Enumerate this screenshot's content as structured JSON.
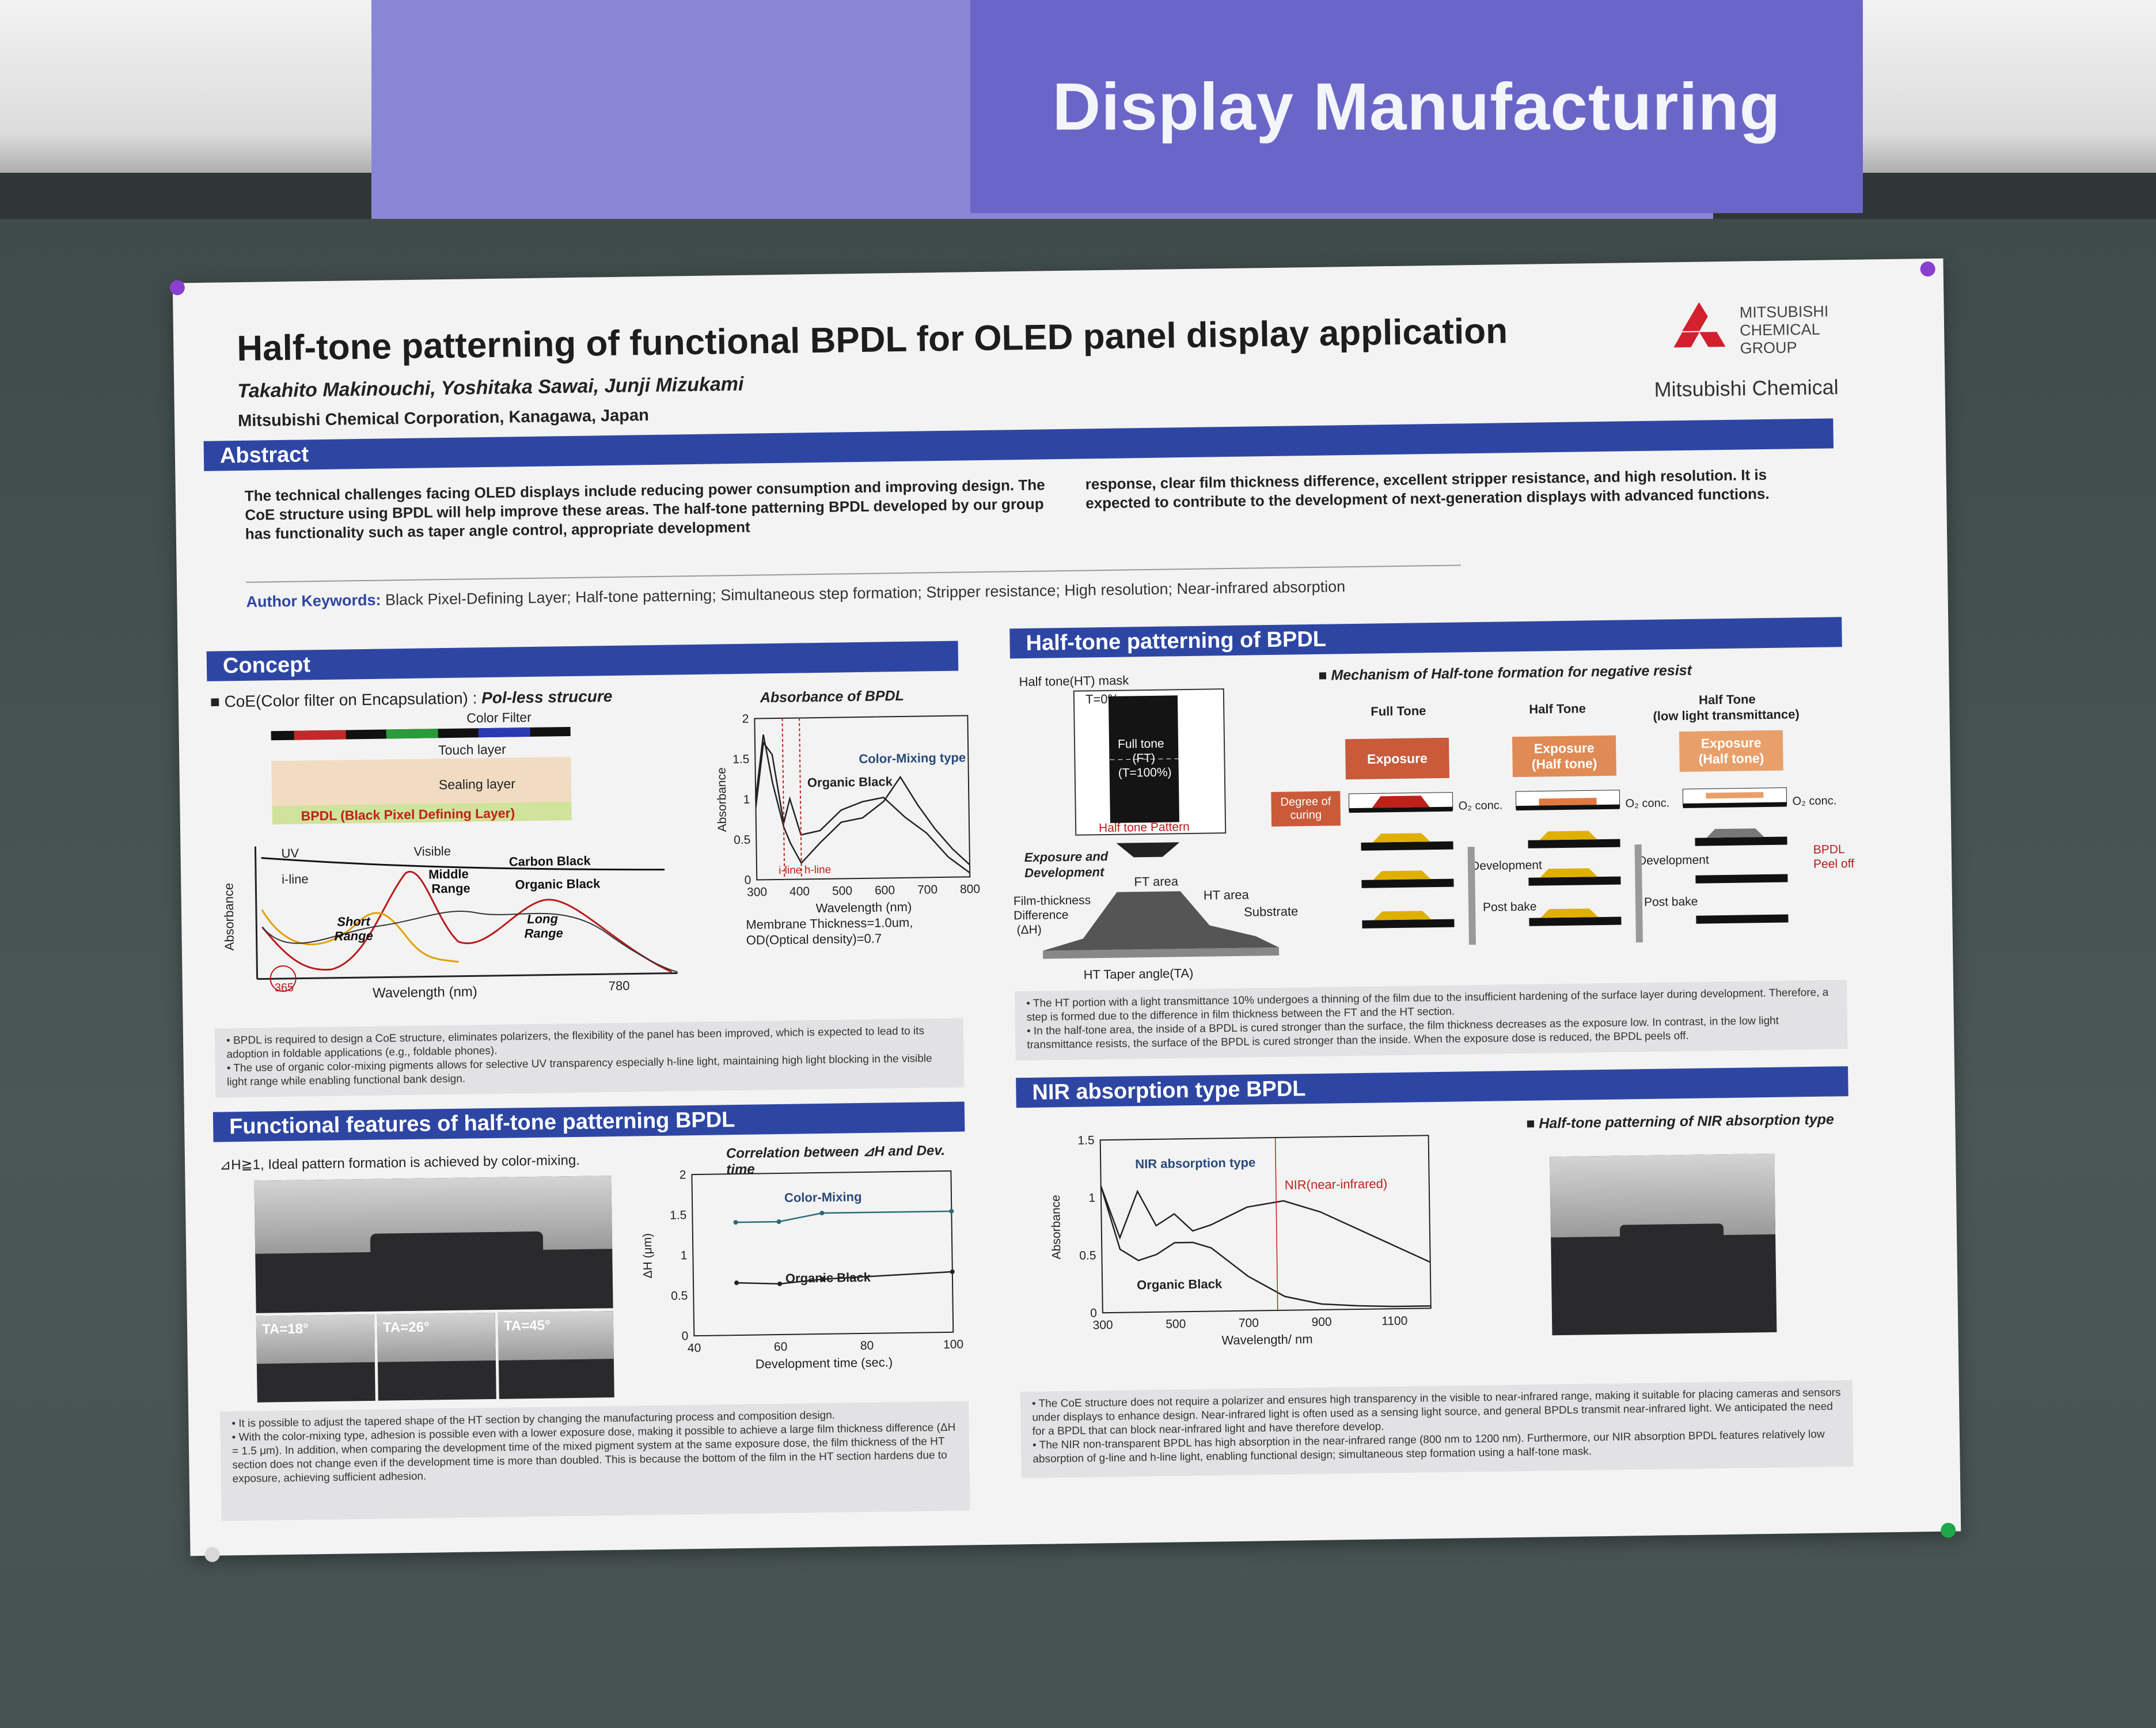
{
  "sign": {
    "title": "Display Manufacturing"
  },
  "poster": {
    "title": "Half-tone patterning of functional BPDL for OLED panel display application",
    "authors": "Takahito Makinouchi, Yoshitaka Sawai, Junji Mizukami",
    "affiliation": "Mitsubishi Chemical Corporation, Kanagawa, Japan",
    "logo_group": [
      "MITSUBISHI",
      "CHEMICAL",
      "GROUP"
    ],
    "logo_name": "Mitsubishi Chemical"
  },
  "abstract": {
    "heading": "Abstract",
    "left": "The technical challenges facing OLED displays include reducing power consumption and improving design. The CoE structure using BPDL will help improve these areas. The half-tone patterning BPDL developed by our group has functionality such as taper angle control, appropriate development",
    "right": "response, clear film thickness difference, excellent stripper resistance, and high resolution. It is expected to contribute to the development of next-generation displays with advanced functions.",
    "keywords_label": "Author Keywords:",
    "keywords": "Black Pixel-Defining Layer; Half-tone patterning; Simultaneous step formation; Stripper resistance; High resolution; Near-infrared absorption"
  },
  "concept": {
    "heading": "Concept",
    "subtitle_prefix": "■ CoE(Color filter on Encapsulation) : ",
    "subtitle_ital": "Pol-less strucure",
    "layers": [
      "Color Filter",
      "Touch layer",
      "Sealing layer",
      "BPDL (Black Pixel Defining Layer)"
    ],
    "spectrum_labels": {
      "uv": "UV",
      "visible": "Visible",
      "iline": "i-line",
      "carbon": "Carbon Black",
      "middle": "Middle Range",
      "organic": "Organic Black",
      "short": "Short Range",
      "long": "Long Range",
      "ylabel": "Absorbance",
      "xlabel": "Wavelength (nm)",
      "x365": "365",
      "x780": "780"
    },
    "notes": [
      "BPDL is required to design a CoE structure, eliminates polarizers, the flexibility of the panel has been improved, which is expected to lead to its adoption in foldable applications (e.g., foldable phones).",
      "The use of organic color-mixing pigments allows for selective UV transparency especially h-line light, maintaining high light blocking in the visible light range while enabling functional bank design."
    ]
  },
  "absorbance_chart": {
    "title": "Absorbance of BPDL",
    "ylabel": "Absorbance",
    "xlabel": "Wavelength (nm)",
    "xticks": [
      "300",
      "400",
      "500",
      "600",
      "700",
      "800"
    ],
    "yticks": [
      "0",
      "0.5",
      "1",
      "1.5",
      "2"
    ],
    "labels": {
      "organic": "Organic Black",
      "mixing": "Color-Mixing type",
      "iline": "i-line",
      "hline": "h-line"
    },
    "footnote1": "Membrane Thickness=1.0um,",
    "footnote2": "OD(Optical density)=0.7"
  },
  "halftone": {
    "heading": "Half-tone patterning of BPDL",
    "mask_title": "Half tone(HT) mask",
    "t0": "T=0%",
    "full_tone": [
      "Full tone",
      "(FT)",
      "(T=100%)"
    ],
    "pattern": "Half tone Pattern",
    "exposure_dev": [
      "Exposure and",
      "Development"
    ],
    "ft_area": "FT area",
    "ht_area": "HT area",
    "film_diff": [
      "Film-thickness",
      "Difference",
      "(ΔH)"
    ],
    "substrate": "Substrate",
    "taper": "HT Taper angle(TA)",
    "mech_title": "■ Mechanism of Half-tone formation for negative resist",
    "columns": [
      "Full Tone",
      "Half Tone",
      "Half Tone",
      "(low light transmittance)"
    ],
    "exposure": [
      "Exposure",
      "Exposure",
      "(Half tone)",
      "Exposure",
      "(Half tone)"
    ],
    "degree": [
      "Degree of",
      "curing"
    ],
    "o2": "O₂ conc.",
    "development": "Development",
    "postbake": "Post bake",
    "peel": [
      "BPDL",
      "Peel off"
    ],
    "notes": [
      "The HT portion with a light transmittance 10% undergoes a thinning of the film due to the insufficient hardening of the surface layer during development. Therefore, a step is formed due to the difference in film thickness between the FT and the HT section.",
      "In the half-tone area, the inside of a BPDL is cured stronger than the surface, the film thickness decreases as the exposure low. In contrast, in the low light transmittance resists, the surface of the BPDL is cured stronger than the inside.  When the exposure dose is reduced, the BPDL peels off."
    ]
  },
  "functional": {
    "heading": "Functional features of half-tone patterning BPDL",
    "subtitle": "⊿H≧1,  Ideal pattern formation is achieved by color-mixing.",
    "ta": [
      "TA=18°",
      "TA=26°",
      "TA=45°"
    ],
    "notes": [
      "It is possible to adjust the tapered shape of the HT section by changing the manufacturing process and composition design.",
      "With the color-mixing type, adhesion is possible even with a lower exposure dose, making it possible to achieve a large film thickness difference (ΔH = 1.5 μm). In addition, when comparing the development time of the mixed pigment system at the same exposure dose, the film thickness of the HT section does not change even if the development time is more than doubled. This is because the bottom of the film in the HT section hardens due to exposure, achieving sufficient adhesion."
    ]
  },
  "nir": {
    "heading": "NIR absorption type BPDL",
    "subtitle": "■ Half-tone patterning of NIR absorption type",
    "notes": [
      "The CoE structure does not require a polarizer and ensures high transparency in the visible to near-infrared range, making it suitable for placing cameras and sensors under displays to enhance design. Near-infrared light is often used as a sensing light source, and general BPDLs transmit near-infrared light. We anticipated the need for a BPDL that can block near-infrared light and have therefore develop.",
      "The NIR non-transparent BPDL has high absorption in the near-infrared range (800 nm to 1200 nm). Furthermore, our NIR absorption BPDL features relatively low absorption of g-line and h-line light, enabling functional design; simultaneous step formation using a half-tone mask."
    ]
  },
  "chart_data": [
    {
      "type": "line",
      "title": "Absorbance of BPDL",
      "xlabel": "Wavelength (nm)",
      "ylabel": "Absorbance",
      "xlim": [
        300,
        800
      ],
      "ylim": [
        0,
        2
      ],
      "series": [
        {
          "name": "Organic Black",
          "x": [
            300,
            320,
            340,
            365,
            380,
            405,
            450,
            500,
            550,
            600,
            650,
            700,
            750,
            800
          ],
          "y": [
            0.9,
            1.7,
            1.55,
            0.7,
            1.0,
            0.55,
            0.6,
            0.85,
            0.95,
            1.0,
            0.75,
            0.55,
            0.25,
            0.05
          ]
        },
        {
          "name": "Color-Mixing type",
          "x": [
            300,
            320,
            340,
            365,
            380,
            405,
            450,
            500,
            550,
            600,
            640,
            680,
            720,
            760,
            800
          ],
          "y": [
            1.0,
            1.8,
            1.2,
            0.65,
            0.45,
            0.2,
            0.45,
            0.7,
            0.75,
            0.95,
            1.25,
            0.9,
            0.6,
            0.35,
            0.15
          ]
        }
      ]
    },
    {
      "type": "line",
      "title": "Correlation between ⊿H and Dev. time",
      "xlabel": "Development time (sec.)",
      "ylabel": "ΔH (μm)",
      "xlim": [
        40,
        100
      ],
      "ylim": [
        0,
        2
      ],
      "xticks": [
        "40",
        "60",
        "80",
        "100"
      ],
      "yticks": [
        "0",
        "0.5",
        "1",
        "1.5",
        "2"
      ],
      "series": [
        {
          "name": "Color-Mixing",
          "x": [
            50,
            60,
            70,
            100
          ],
          "y": [
            1.4,
            1.4,
            1.5,
            1.5
          ]
        },
        {
          "name": "Organic Black",
          "x": [
            50,
            60,
            70,
            100
          ],
          "y": [
            0.65,
            0.63,
            0.68,
            0.75
          ]
        }
      ]
    },
    {
      "type": "line",
      "title": "",
      "xlabel": "Wavelength/ nm",
      "ylabel": "Absorbance",
      "xlim": [
        300,
        1200
      ],
      "ylim": [
        0,
        1.5
      ],
      "xticks": [
        "300",
        "500",
        "700",
        "900",
        "1100"
      ],
      "yticks": [
        "0",
        "0.5",
        "1",
        "1.5"
      ],
      "annotation": "NIR(near-infrared)",
      "series": [
        {
          "name": "NIR absorption type",
          "x": [
            300,
            350,
            400,
            450,
            500,
            550,
            600,
            700,
            800,
            900,
            1000,
            1100,
            1200
          ],
          "y": [
            1.1,
            0.65,
            1.05,
            0.75,
            0.85,
            0.7,
            0.75,
            0.9,
            0.95,
            0.85,
            0.7,
            0.55,
            0.4
          ]
        },
        {
          "name": "Organic Black",
          "x": [
            300,
            350,
            400,
            450,
            500,
            550,
            600,
            700,
            800,
            900,
            1000,
            1100,
            1200
          ],
          "y": [
            1.1,
            0.55,
            0.45,
            0.5,
            0.6,
            0.6,
            0.55,
            0.3,
            0.12,
            0.05,
            0.03,
            0.02,
            0.02
          ]
        }
      ]
    }
  ]
}
